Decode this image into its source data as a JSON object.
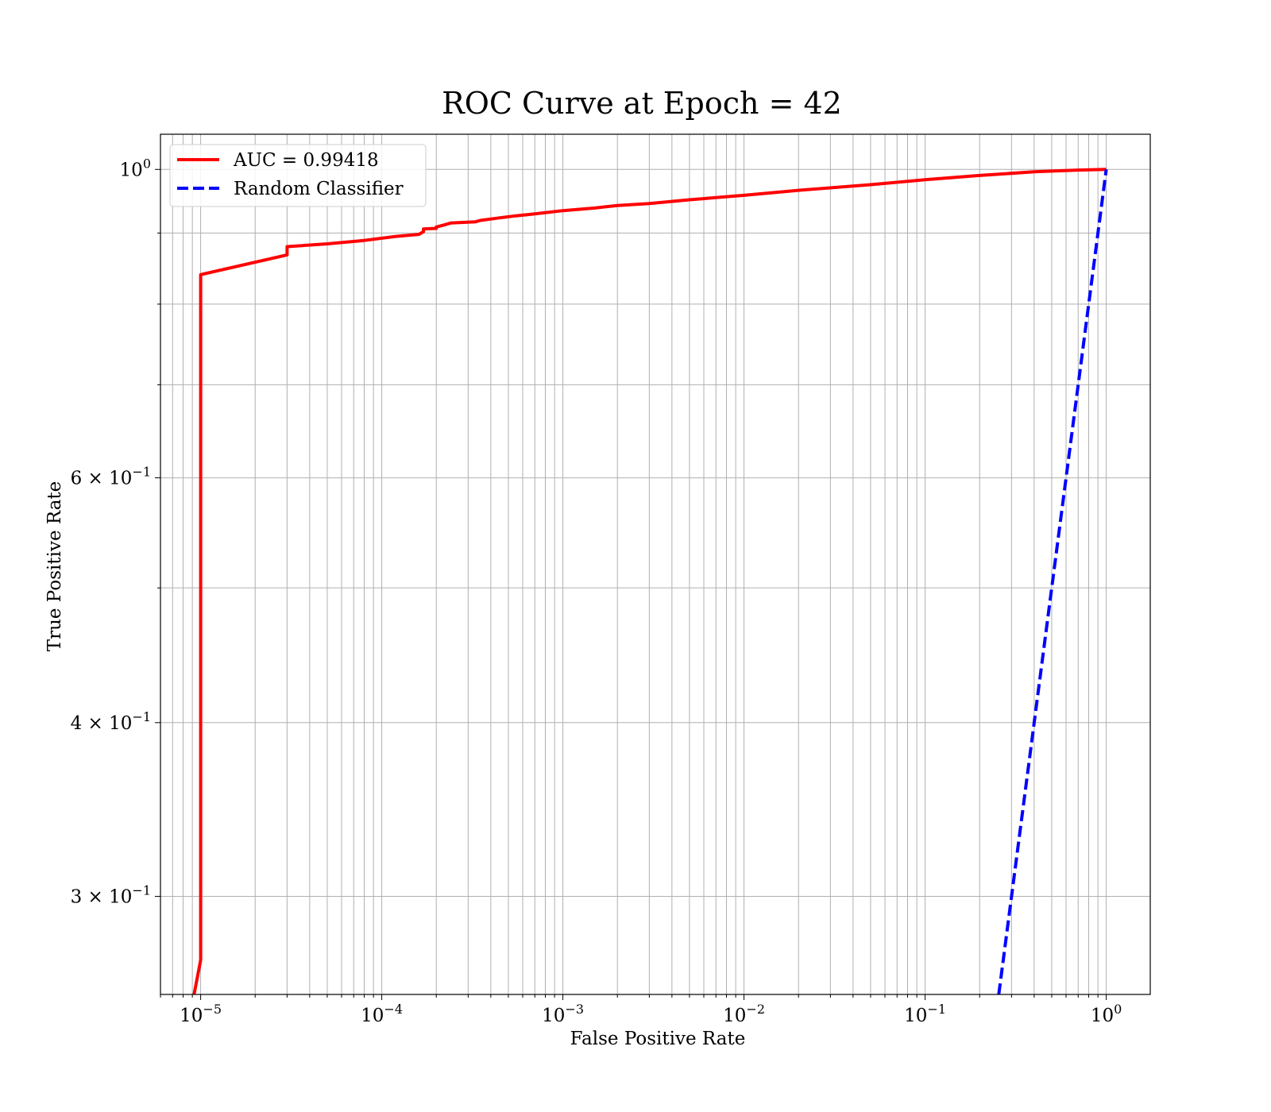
{
  "chart_data": {
    "type": "line",
    "title": "ROC Curve at Epoch = 42",
    "xlabel": "False Positive Rate",
    "ylabel": "True Positive Rate",
    "xscale": "log",
    "yscale": "log",
    "xlim": [
      6e-06,
      1.75
    ],
    "ylim": [
      0.255,
      1.06
    ],
    "grid": true,
    "grid_which": "both",
    "legend_position": "upper-left",
    "x_ticks": [
      {
        "value": 1e-05,
        "label": "10",
        "exp": "−5"
      },
      {
        "value": 0.0001,
        "label": "10",
        "exp": "−4"
      },
      {
        "value": 0.001,
        "label": "10",
        "exp": "−3"
      },
      {
        "value": 0.01,
        "label": "10",
        "exp": "−2"
      },
      {
        "value": 0.1,
        "label": "10",
        "exp": "−1"
      },
      {
        "value": 1,
        "label": "10",
        "exp": "0"
      }
    ],
    "y_ticks": [
      {
        "value": 1.0,
        "label": "10",
        "exp": "0"
      },
      {
        "value": 0.6,
        "label": "6 × 10",
        "exp": "−1"
      },
      {
        "value": 0.4,
        "label": "4 × 10",
        "exp": "−1"
      },
      {
        "value": 0.3,
        "label": "3 × 10",
        "exp": "−1"
      }
    ],
    "y_minor": [
      0.7,
      0.8,
      0.9,
      0.5
    ],
    "series": [
      {
        "name": "AUC = 0.99418",
        "color": "#ff0000",
        "dash": "solid",
        "x": [
          9.2e-06,
          1e-05,
          1e-05,
          1e-05,
          3e-05,
          3e-05,
          5e-05,
          8e-05,
          0.00012,
          0.00016,
          0.00017,
          0.00017,
          0.0002,
          0.0002,
          0.00022,
          0.00024,
          0.00033,
          0.00035,
          0.00045,
          0.00055,
          0.0007,
          0.001,
          0.0015,
          0.002,
          0.003,
          0.005,
          0.01,
          0.02,
          0.05,
          0.1,
          0.2,
          0.4,
          0.7,
          1.0
        ],
        "y": [
          0.255,
          0.27,
          0.27,
          0.84,
          0.868,
          0.88,
          0.884,
          0.889,
          0.895,
          0.898,
          0.902,
          0.906,
          0.907,
          0.909,
          0.912,
          0.915,
          0.917,
          0.919,
          0.923,
          0.926,
          0.929,
          0.934,
          0.938,
          0.942,
          0.945,
          0.951,
          0.958,
          0.966,
          0.975,
          0.983,
          0.99,
          0.996,
          0.999,
          1.0
        ]
      },
      {
        "name": "Random Classifier",
        "color": "#0000ff",
        "dash": "dashed",
        "x": [
          0.255,
          1.0
        ],
        "y": [
          0.255,
          1.0
        ]
      }
    ]
  }
}
